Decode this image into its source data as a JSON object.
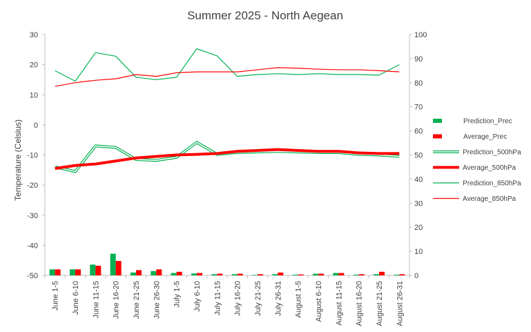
{
  "chart_data": {
    "type": "bar",
    "title": "Summer 2025 - North Aegean",
    "ylabel": "Temperature (Celsius)",
    "ylim": [
      -50,
      30
    ],
    "y2lim": [
      0,
      100
    ],
    "yticks": [
      -50,
      -40,
      -30,
      -20,
      -10,
      0,
      10,
      20,
      30
    ],
    "y2ticks": [
      0,
      10,
      20,
      30,
      40,
      50,
      60,
      70,
      80,
      90,
      100
    ],
    "grid": false,
    "legend_position": "right",
    "categories": [
      "June 1-5",
      "June 6-10",
      "June 11-15",
      "June 16-20",
      "June 21-25",
      "June 26-30",
      "July 1-5",
      "July 6-10",
      "July 11-15",
      "July 16-20",
      "July 21-25",
      "July 26-31",
      "August 1-5",
      "August 6-10",
      "August 11-15",
      "August 16-20",
      "August 21-25",
      "August 26-31"
    ],
    "series": [
      {
        "name": "Prediction_Prec",
        "type": "bar",
        "axis": "secondary",
        "color": "#00b050",
        "values": [
          2.5,
          2.5,
          4.5,
          9,
          1.2,
          1.8,
          1,
          0.8,
          0.5,
          0.5,
          0.2,
          0.5,
          0.3,
          0.7,
          1,
          0.3,
          0.5,
          0.3
        ]
      },
      {
        "name": "Average_Prec",
        "type": "bar",
        "axis": "secondary",
        "color": "#ff0000",
        "values": [
          2.5,
          2.5,
          4,
          6,
          2.2,
          2.5,
          1.5,
          1,
          0.7,
          0.7,
          0.5,
          1.2,
          0.4,
          0.7,
          1,
          0.5,
          1.5,
          0.5
        ]
      },
      {
        "name": "Prediction_500hPa",
        "type": "line",
        "style": "double",
        "axis": "primary",
        "color": "#00b050",
        "values": [
          -14,
          -15.5,
          -7,
          -7.5,
          -11.5,
          -11.8,
          -10.8,
          -5.8,
          -9.8,
          -9.2,
          -9.0,
          -8.8,
          -9.0,
          -9.2,
          -9.2,
          -9.8,
          -10.0,
          -10.5
        ]
      },
      {
        "name": "Average_500hPa",
        "type": "line",
        "style": "thick",
        "axis": "primary",
        "color": "#ff0000",
        "values": [
          -14.5,
          -13.5,
          -13.0,
          -12.0,
          -11.0,
          -10.5,
          -10.0,
          -9.8,
          -9.5,
          -8.8,
          -8.5,
          -8.2,
          -8.5,
          -8.8,
          -8.8,
          -9.3,
          -9.5,
          -9.5
        ]
      },
      {
        "name": "Prediction_850hPa",
        "type": "line",
        "style": "thin",
        "axis": "primary",
        "color": "#00b050",
        "values": [
          18.0,
          14.5,
          24.0,
          22.8,
          15.8,
          15.0,
          15.8,
          25.3,
          22.9,
          16.1,
          16.7,
          17.0,
          16.7,
          17.0,
          16.7,
          16.7,
          16.5,
          20.0
        ]
      },
      {
        "name": "Average_850hPa",
        "type": "line",
        "style": "thin",
        "axis": "primary",
        "color": "#ff0000",
        "values": [
          12.8,
          14.0,
          14.8,
          15.3,
          16.7,
          16.1,
          17.3,
          17.6,
          17.6,
          17.6,
          18.3,
          19.0,
          18.8,
          18.5,
          18.3,
          18.3,
          18.0,
          17.6
        ]
      }
    ]
  }
}
